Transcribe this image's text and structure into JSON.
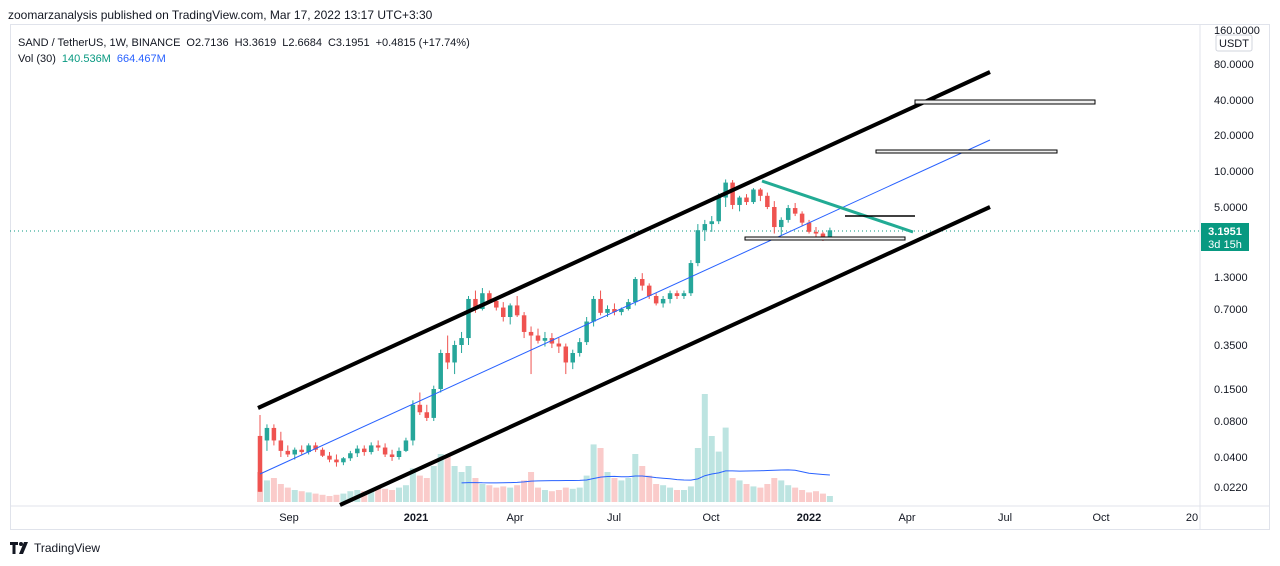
{
  "header": {
    "publisher_line": "zoomarzanalysis published on TradingView.com, Mar 17, 2022 13:17 UTC+3:30"
  },
  "legend": {
    "symbol": "SAND / TetherUS, 1W, BINANCE",
    "open": "O2.7136",
    "high": "H3.3619",
    "low": "L2.6684",
    "close": "C3.1951",
    "change": "+0.4815 (+17.74%)",
    "vol_label": "Vol (30)",
    "vol_value": "140.536M",
    "vol_ma": "664.467M"
  },
  "price_tag": {
    "price": "3.1951",
    "countdown": "3d 15h"
  },
  "unit_label": "USDT",
  "footer": {
    "brand": "TradingView"
  },
  "chart_data": {
    "type": "candlestick",
    "title": "SAND / TetherUS, 1W, BINANCE",
    "y_scale": "log",
    "y_ticks": [
      "160.0000",
      "80.0000",
      "40.0000",
      "20.0000",
      "10.0000",
      "5.0000",
      "1.3000",
      "0.7000",
      "0.3500",
      "0.1500",
      "0.0800",
      "0.0400",
      "0.0220"
    ],
    "x_ticks": [
      "Sep",
      "2021",
      "Apr",
      "Jul",
      "Oct",
      "2022",
      "Apr",
      "Jul",
      "Oct",
      "20"
    ],
    "last_price": 3.1951,
    "candles": [
      [
        0.06,
        0.09,
        0.02,
        0.02
      ],
      [
        0.055,
        0.075,
        0.045,
        0.07
      ],
      [
        0.07,
        0.075,
        0.05,
        0.055
      ],
      [
        0.055,
        0.065,
        0.04,
        0.045
      ],
      [
        0.045,
        0.05,
        0.04,
        0.042
      ],
      [
        0.042,
        0.048,
        0.038,
        0.046
      ],
      [
        0.046,
        0.05,
        0.042,
        0.044
      ],
      [
        0.044,
        0.052,
        0.042,
        0.05
      ],
      [
        0.05,
        0.053,
        0.044,
        0.046
      ],
      [
        0.046,
        0.048,
        0.04,
        0.041
      ],
      [
        0.041,
        0.044,
        0.036,
        0.038
      ],
      [
        0.038,
        0.042,
        0.033,
        0.036
      ],
      [
        0.036,
        0.04,
        0.034,
        0.039
      ],
      [
        0.039,
        0.045,
        0.037,
        0.043
      ],
      [
        0.043,
        0.05,
        0.04,
        0.047
      ],
      [
        0.047,
        0.05,
        0.041,
        0.044
      ],
      [
        0.044,
        0.053,
        0.042,
        0.05
      ],
      [
        0.05,
        0.055,
        0.045,
        0.048
      ],
      [
        0.048,
        0.052,
        0.04,
        0.042
      ],
      [
        0.042,
        0.046,
        0.037,
        0.04
      ],
      [
        0.04,
        0.048,
        0.038,
        0.045
      ],
      [
        0.045,
        0.058,
        0.044,
        0.055
      ],
      [
        0.055,
        0.12,
        0.05,
        0.11
      ],
      [
        0.11,
        0.14,
        0.09,
        0.095
      ],
      [
        0.095,
        0.11,
        0.08,
        0.085
      ],
      [
        0.085,
        0.16,
        0.08,
        0.15
      ],
      [
        0.15,
        0.32,
        0.14,
        0.3
      ],
      [
        0.3,
        0.42,
        0.22,
        0.25
      ],
      [
        0.25,
        0.38,
        0.2,
        0.35
      ],
      [
        0.35,
        0.45,
        0.3,
        0.4
      ],
      [
        0.4,
        0.9,
        0.35,
        0.85
      ],
      [
        0.85,
        1.0,
        0.65,
        0.7
      ],
      [
        0.7,
        1.05,
        0.68,
        0.95
      ],
      [
        0.95,
        1.0,
        0.78,
        0.82
      ],
      [
        0.82,
        0.88,
        0.68,
        0.72
      ],
      [
        0.72,
        0.8,
        0.55,
        0.6
      ],
      [
        0.6,
        0.78,
        0.52,
        0.75
      ],
      [
        0.75,
        0.9,
        0.6,
        0.62
      ],
      [
        0.62,
        0.66,
        0.4,
        0.45
      ],
      [
        0.45,
        0.5,
        0.2,
        0.42
      ],
      [
        0.42,
        0.48,
        0.36,
        0.38
      ],
      [
        0.38,
        0.45,
        0.34,
        0.4
      ],
      [
        0.4,
        0.44,
        0.33,
        0.36
      ],
      [
        0.36,
        0.4,
        0.3,
        0.34
      ],
      [
        0.34,
        0.36,
        0.2,
        0.25
      ],
      [
        0.25,
        0.32,
        0.22,
        0.3
      ],
      [
        0.3,
        0.4,
        0.28,
        0.37
      ],
      [
        0.37,
        0.6,
        0.35,
        0.55
      ],
      [
        0.55,
        0.9,
        0.5,
        0.85
      ],
      [
        0.85,
        1.0,
        0.62,
        0.65
      ],
      [
        0.65,
        0.75,
        0.6,
        0.7
      ],
      [
        0.7,
        0.78,
        0.62,
        0.66
      ],
      [
        0.66,
        0.72,
        0.62,
        0.7
      ],
      [
        0.7,
        0.85,
        0.68,
        0.8
      ],
      [
        0.8,
        1.3,
        0.75,
        1.25
      ],
      [
        1.25,
        1.4,
        1.0,
        1.1
      ],
      [
        1.1,
        1.15,
        0.85,
        0.9
      ],
      [
        0.9,
        0.95,
        0.75,
        0.78
      ],
      [
        0.78,
        0.9,
        0.72,
        0.85
      ],
      [
        0.85,
        1.0,
        0.78,
        0.95
      ],
      [
        0.95,
        1.0,
        0.85,
        0.9
      ],
      [
        0.9,
        1.0,
        0.85,
        0.95
      ],
      [
        0.95,
        1.8,
        0.9,
        1.7
      ],
      [
        1.7,
        3.6,
        1.6,
        3.2
      ],
      [
        3.2,
        3.9,
        2.6,
        3.6
      ],
      [
        3.6,
        4.2,
        3.1,
        3.8
      ],
      [
        3.8,
        6.5,
        3.6,
        6.0
      ],
      [
        6.0,
        8.5,
        5.0,
        8.0
      ],
      [
        8.0,
        8.4,
        4.8,
        5.2
      ],
      [
        5.2,
        6.2,
        4.6,
        6.0
      ],
      [
        6.0,
        6.4,
        5.2,
        5.5
      ],
      [
        5.5,
        7.2,
        5.3,
        7.0
      ],
      [
        7.0,
        7.2,
        5.6,
        6.2
      ],
      [
        6.2,
        6.6,
        4.8,
        5.0
      ],
      [
        5.0,
        5.6,
        3.0,
        3.4
      ],
      [
        3.4,
        4.1,
        2.9,
        3.9
      ],
      [
        3.9,
        5.2,
        3.7,
        4.9
      ],
      [
        4.9,
        5.4,
        4.2,
        4.4
      ],
      [
        4.4,
        4.6,
        3.5,
        3.7
      ],
      [
        3.7,
        3.9,
        3.0,
        3.1
      ],
      [
        3.1,
        3.4,
        2.8,
        3.0
      ],
      [
        3.0,
        3.1,
        2.6,
        2.7
      ],
      [
        2.7136,
        3.3619,
        2.6684,
        3.1951
      ]
    ],
    "volume": [
      0.25,
      0.18,
      0.2,
      0.15,
      0.12,
      0.1,
      0.09,
      0.08,
      0.07,
      0.06,
      0.05,
      0.06,
      0.07,
      0.09,
      0.1,
      0.09,
      0.1,
      0.12,
      0.11,
      0.1,
      0.12,
      0.14,
      0.28,
      0.22,
      0.2,
      0.3,
      0.4,
      0.38,
      0.3,
      0.25,
      0.3,
      0.2,
      0.15,
      0.14,
      0.12,
      0.13,
      0.12,
      0.14,
      0.18,
      0.25,
      0.12,
      0.1,
      0.09,
      0.1,
      0.12,
      0.11,
      0.12,
      0.22,
      0.48,
      0.45,
      0.25,
      0.2,
      0.18,
      0.2,
      0.4,
      0.3,
      0.22,
      0.15,
      0.14,
      0.12,
      0.1,
      0.1,
      0.13,
      0.45,
      0.9,
      0.55,
      0.42,
      0.62,
      0.2,
      0.18,
      0.15,
      0.13,
      0.12,
      0.15,
      0.2,
      0.18,
      0.14,
      0.12,
      0.1,
      0.08,
      0.09,
      0.07,
      0.05
    ]
  }
}
